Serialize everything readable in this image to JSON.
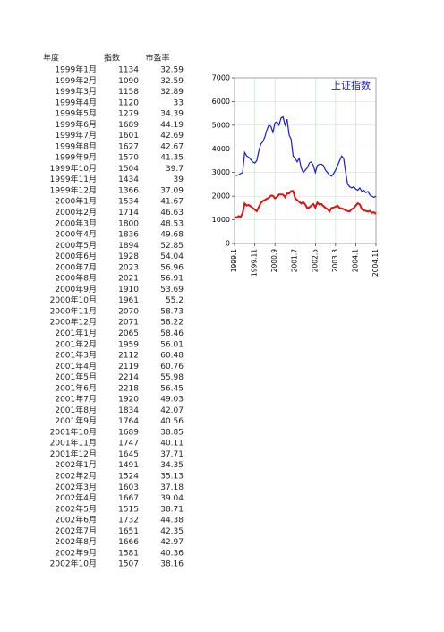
{
  "table": {
    "headers": [
      "年度",
      "指数",
      "市盈率"
    ],
    "rows": [
      [
        "1999年1月",
        1134,
        32.59
      ],
      [
        "1999年2月",
        1090,
        32.59
      ],
      [
        "1999年3月",
        1158,
        32.89
      ],
      [
        "1999年4月",
        1120,
        33
      ],
      [
        "1999年5月",
        1279,
        34.39
      ],
      [
        "1999年6月",
        1689,
        44.19
      ],
      [
        "1999年7月",
        1601,
        42.69
      ],
      [
        "1999年8月",
        1627,
        42.67
      ],
      [
        "1999年9月",
        1570,
        41.35
      ],
      [
        "1999年10月",
        1504,
        39.7
      ],
      [
        "1999年11月",
        1434,
        39
      ],
      [
        "1999年12月",
        1366,
        37.09
      ],
      [
        "2000年1月",
        1534,
        41.67
      ],
      [
        "2000年2月",
        1714,
        46.63
      ],
      [
        "2000年3月",
        1800,
        48.53
      ],
      [
        "2000年4月",
        1836,
        49.68
      ],
      [
        "2000年5月",
        1894,
        52.85
      ],
      [
        "2000年6月",
        1928,
        54.04
      ],
      [
        "2000年7月",
        2023,
        56.96
      ],
      [
        "2000年8月",
        2021,
        56.91
      ],
      [
        "2000年9月",
        1910,
        53.69
      ],
      [
        "2000年10月",
        1961,
        55.2
      ],
      [
        "2000年11月",
        2070,
        58.73
      ],
      [
        "2000年12月",
        2071,
        58.22
      ],
      [
        "2001年1月",
        2065,
        58.46
      ],
      [
        "2001年2月",
        1959,
        56.01
      ],
      [
        "2001年3月",
        2112,
        60.48
      ],
      [
        "2001年4月",
        2119,
        60.76
      ],
      [
        "2001年5月",
        2214,
        55.98
      ],
      [
        "2001年6月",
        2218,
        56.45
      ],
      [
        "2001年7月",
        1920,
        49.03
      ],
      [
        "2001年8月",
        1834,
        42.07
      ],
      [
        "2001年9月",
        1764,
        40.56
      ],
      [
        "2001年10月",
        1689,
        38.85
      ],
      [
        "2001年11月",
        1747,
        40.11
      ],
      [
        "2001年12月",
        1645,
        37.71
      ],
      [
        "2002年1月",
        1491,
        34.35
      ],
      [
        "2002年2月",
        1524,
        35.13
      ],
      [
        "2002年3月",
        1603,
        37.18
      ],
      [
        "2002年4月",
        1667,
        39.04
      ],
      [
        "2002年5月",
        1515,
        38.71
      ],
      [
        "2002年6月",
        1732,
        44.38
      ],
      [
        "2002年7月",
        1651,
        42.35
      ],
      [
        "2002年8月",
        1666,
        42.97
      ],
      [
        "2002年9月",
        1581,
        40.36
      ],
      [
        "2002年10月",
        1507,
        38.16
      ]
    ]
  },
  "chart_data": {
    "type": "line",
    "title": "上证指数",
    "categories": [
      "1999.1",
      null,
      null,
      null,
      null,
      null,
      null,
      null,
      null,
      null,
      "1999.11",
      null,
      null,
      null,
      null,
      null,
      null,
      null,
      null,
      null,
      "2000.9",
      null,
      null,
      null,
      null,
      null,
      null,
      null,
      null,
      null,
      "2001.7",
      null,
      null,
      null,
      null,
      null,
      null,
      null,
      null,
      null,
      "2002.5",
      null,
      null,
      null,
      null,
      null,
      null,
      null,
      null,
      null,
      "2003.3",
      null,
      null,
      null,
      null,
      null,
      null,
      null,
      null,
      null,
      "2004.1",
      null,
      null,
      null,
      null,
      null,
      null,
      null,
      null,
      null,
      "2004.11"
    ],
    "series": [
      {
        "color": "#1a1ac8",
        "values": [
          2900,
          2880,
          2900,
          2950,
          3000,
          3850,
          3700,
          3650,
          3550,
          3450,
          3400,
          3500,
          3900,
          4200,
          4300,
          4500,
          4800,
          5000,
          4950,
          4700,
          5100,
          5150,
          5000,
          5300,
          5350,
          5000,
          5250,
          4600,
          4400,
          3700,
          3600,
          3450,
          3600,
          3200,
          3000,
          3100,
          3200,
          3400,
          3450,
          3300,
          3000,
          3300,
          3350,
          3350,
          3300,
          3100,
          3000,
          2900,
          2850,
          2950,
          3100,
          3300,
          3500,
          3700,
          3600,
          3000,
          2500,
          2400,
          2350,
          2400,
          2300,
          2250,
          2350,
          2200,
          2250,
          2150,
          2200,
          2050,
          2000,
          1950,
          2000
        ]
      },
      {
        "color": "#e01010",
        "values": [
          1134,
          1090,
          1158,
          1120,
          1279,
          1689,
          1601,
          1627,
          1570,
          1504,
          1434,
          1366,
          1534,
          1714,
          1800,
          1836,
          1894,
          1928,
          2023,
          2021,
          1910,
          1961,
          2070,
          2071,
          2065,
          1959,
          2112,
          2119,
          2214,
          2218,
          1920,
          1834,
          1764,
          1689,
          1747,
          1645,
          1491,
          1524,
          1603,
          1667,
          1515,
          1732,
          1651,
          1666,
          1581,
          1507,
          1450,
          1360,
          1500,
          1520,
          1550,
          1600,
          1500,
          1480,
          1450,
          1400,
          1370,
          1360,
          1450,
          1500,
          1600,
          1700,
          1650,
          1450,
          1400,
          1380,
          1350,
          1380,
          1300,
          1320,
          1250
        ]
      }
    ],
    "ylim": [
      0,
      7000
    ],
    "yticks": [
      0,
      1000,
      2000,
      3000,
      4000,
      5000,
      6000,
      7000
    ],
    "grid": true
  }
}
